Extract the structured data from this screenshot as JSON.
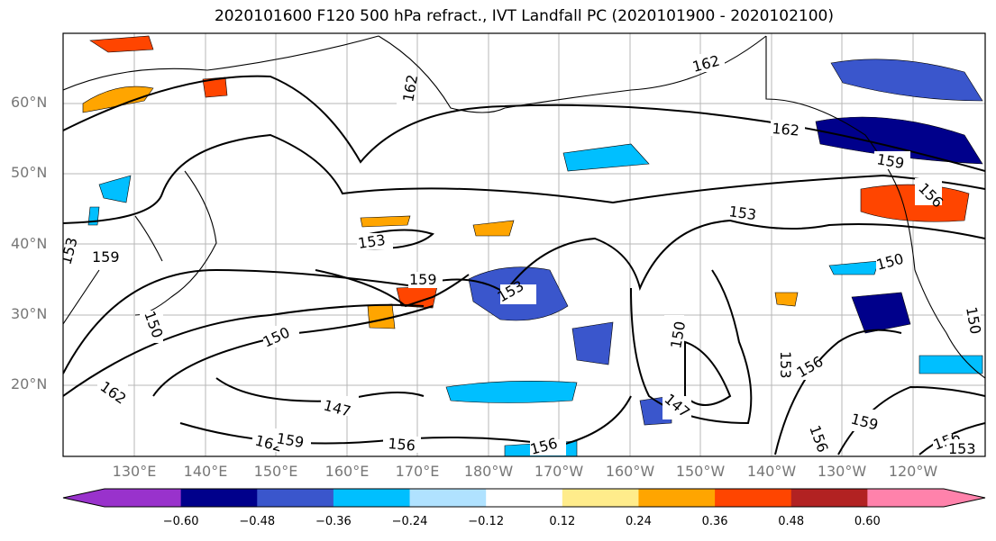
{
  "title": "2020101600 F120 500 hPa refract., IVT Landfall PC (2020101900 - 2020102100)",
  "latitude_labels": [
    "60°N",
    "50°N",
    "40°N",
    "30°N",
    "20°N"
  ],
  "longitude_labels": [
    "130°E",
    "140°E",
    "150°E",
    "160°E",
    "170°E",
    "180°W",
    "170°W",
    "160°W",
    "150°W",
    "140°W",
    "130°W",
    "120°W"
  ],
  "contour_labels": [
    "162",
    "162",
    "162",
    "159",
    "159",
    "159",
    "156",
    "156",
    "156",
    "156",
    "156",
    "156",
    "153",
    "153",
    "153",
    "153",
    "153",
    "153",
    "150",
    "150",
    "150",
    "150",
    "147",
    "147",
    "162",
    "162",
    "159",
    "159",
    "150"
  ],
  "colorbar": {
    "ticks": [
      "−0.60",
      "−0.48",
      "−0.36",
      "−0.24",
      "−0.12",
      "0.12",
      "0.24",
      "0.36",
      "0.48",
      "0.60"
    ],
    "colors": [
      "#9932cc",
      "#00008b",
      "#3a56cc",
      "#00bfff",
      "#b0e2ff",
      "#ffffff",
      "#ffec8b",
      "#ffa500",
      "#ff4500",
      "#b22222",
      "#ff82ab"
    ]
  }
}
